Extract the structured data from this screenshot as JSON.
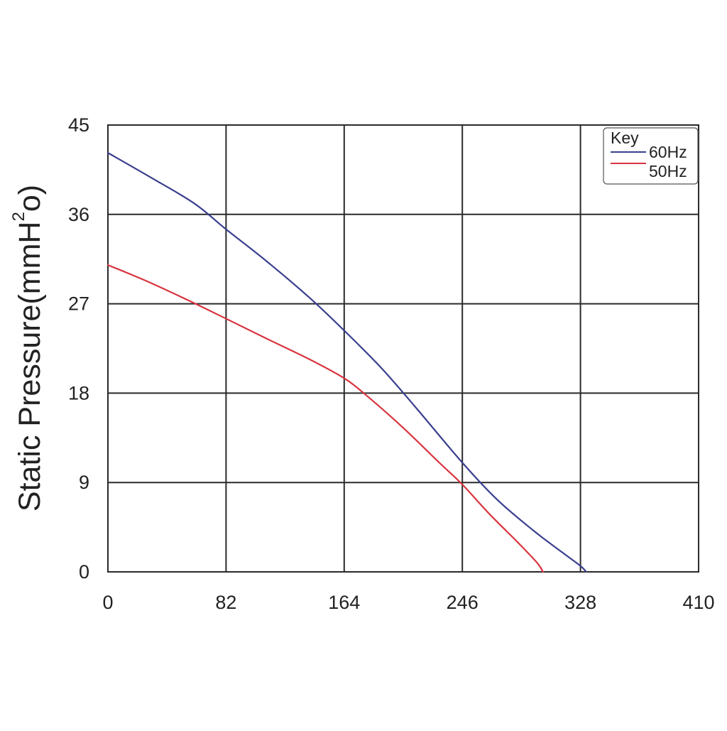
{
  "chart_data": {
    "type": "line",
    "title": "",
    "xlabel": "",
    "ylabel_main": "Static Pressure(mmH",
    "ylabel_sup": "2",
    "ylabel_tail": "o)",
    "xlim": [
      0,
      410
    ],
    "ylim": [
      0,
      45
    ],
    "x_ticks": [
      "0",
      "82",
      "164",
      "246",
      "328",
      "410"
    ],
    "y_ticks": [
      "0",
      "9",
      "18",
      "27",
      "36",
      "45"
    ],
    "x_tick_values": [
      0,
      82,
      164,
      246,
      328,
      410
    ],
    "y_tick_values": [
      0,
      9,
      18,
      27,
      36,
      45
    ],
    "grid": true,
    "legend": {
      "title": "Key",
      "placement": "top-right"
    },
    "series": [
      {
        "name": "60Hz",
        "color": "#3a3f8f",
        "points": [
          [
            0,
            42.2
          ],
          [
            30,
            39.7
          ],
          [
            60,
            37.1
          ],
          [
            82,
            34.5
          ],
          [
            110,
            31.3
          ],
          [
            140,
            27.6
          ],
          [
            164,
            24.3
          ],
          [
            190,
            20.5
          ],
          [
            214,
            16.5
          ],
          [
            246,
            11.0
          ],
          [
            270,
            7.3
          ],
          [
            295,
            4.2
          ],
          [
            315,
            2.0
          ],
          [
            328,
            0.6
          ],
          [
            332,
            0
          ]
        ]
      },
      {
        "name": "50Hz",
        "color": "#d8343f",
        "points": [
          [
            0,
            30.9
          ],
          [
            25,
            29.4
          ],
          [
            55,
            27.4
          ],
          [
            82,
            25.5
          ],
          [
            110,
            23.5
          ],
          [
            140,
            21.4
          ],
          [
            164,
            19.5
          ],
          [
            180,
            17.7
          ],
          [
            205,
            14.5
          ],
          [
            230,
            11.0
          ],
          [
            246,
            8.8
          ],
          [
            265,
            5.8
          ],
          [
            285,
            2.9
          ],
          [
            298,
            0.9
          ],
          [
            302,
            0
          ]
        ]
      }
    ]
  }
}
